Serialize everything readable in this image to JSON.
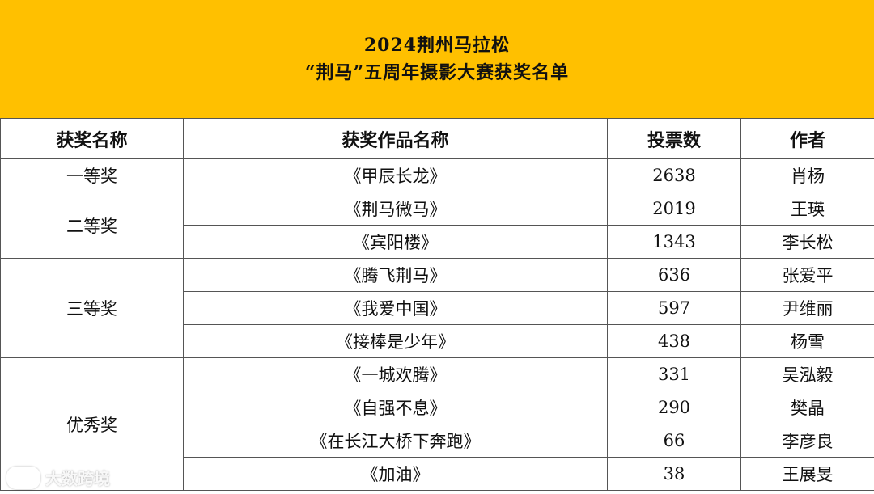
{
  "title": {
    "line1": "2024荆州马拉松",
    "line2": "“荆马”五周年摄影大赛获奖名单"
  },
  "headers": [
    "获奖名称",
    "获奖作品名称",
    "投票数",
    "作者"
  ],
  "groups": [
    {
      "award": "一等奖",
      "rows": [
        {
          "work": "《甲辰长龙》",
          "votes": "2638",
          "author": "肖杨"
        }
      ]
    },
    {
      "award": "二等奖",
      "rows": [
        {
          "work": "《荆马微马》",
          "votes": "2019",
          "author": "王瑛"
        },
        {
          "work": "《宾阳楼》",
          "votes": "1343",
          "author": "李长松"
        }
      ]
    },
    {
      "award": "三等奖",
      "rows": [
        {
          "work": "《腾飞荆马》",
          "votes": "636",
          "author": "张爱平"
        },
        {
          "work": "《我爱中国》",
          "votes": "597",
          "author": "尹维丽"
        },
        {
          "work": "《接棒是少年》",
          "votes": "438",
          "author": "杨雪"
        }
      ]
    },
    {
      "award": "优秀奖",
      "rows": [
        {
          "work": "《一城欢腾》",
          "votes": "331",
          "author": "吴泓毅"
        },
        {
          "work": "《自强不息》",
          "votes": "290",
          "author": "樊晶"
        },
        {
          "work": "《在长江大桥下奔跑》",
          "votes": "66",
          "author": "李彦良"
        },
        {
          "work": "《加油》",
          "votes": "38",
          "author": "王展旻"
        }
      ]
    }
  ],
  "watermark": {
    "text": "大数跨境",
    "icon": "brand-logo-icon"
  }
}
